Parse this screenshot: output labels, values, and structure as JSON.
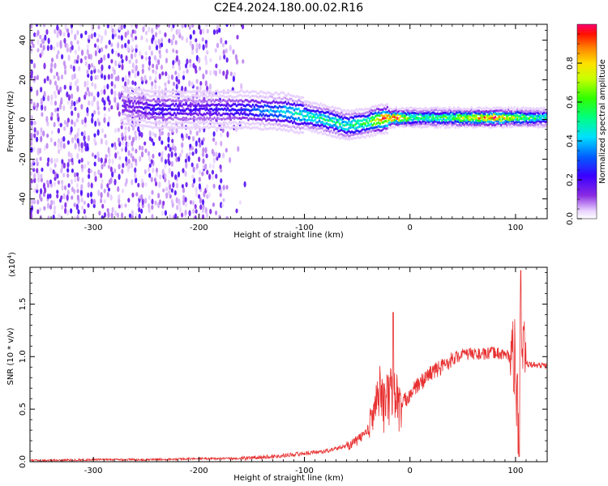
{
  "figure": {
    "title": "C2E4.2024.180.00.02.R16"
  },
  "chart_data": [
    {
      "type": "heatmap",
      "title": "C2E4.2024.180.00.02.R16",
      "xlabel": "Height of straight line (km)",
      "ylabel": "Frequency (Hz)",
      "xlim": [
        -360,
        130
      ],
      "ylim": [
        -50,
        48
      ],
      "x_ticks": [
        -300,
        -200,
        -100,
        0,
        100
      ],
      "x_tick_labels": [
        "-300",
        "-200",
        "-100",
        "0",
        "100"
      ],
      "y_ticks": [
        -40,
        -20,
        0,
        20,
        40
      ],
      "y_tick_labels": [
        "-40",
        "-20",
        "0",
        "20",
        "40"
      ],
      "colorbar": {
        "label": "Normalized spectral amplitude",
        "range": [
          0,
          1
        ],
        "ticks": [
          0.0,
          0.2,
          0.4,
          0.6,
          0.8
        ],
        "tick_labels": [
          "0.0",
          "0.2",
          "0.4",
          "0.6",
          "0.8"
        ]
      },
      "ridge_center_hz": [
        {
          "x": -270,
          "y": 7
        },
        {
          "x": -240,
          "y": 5
        },
        {
          "x": -200,
          "y": 5
        },
        {
          "x": -160,
          "y": 5
        },
        {
          "x": -120,
          "y": 4
        },
        {
          "x": -100,
          "y": 2
        },
        {
          "x": -80,
          "y": 0
        },
        {
          "x": -60,
          "y": -3
        },
        {
          "x": -45,
          "y": -2
        },
        {
          "x": -30,
          "y": 0
        },
        {
          "x": -15,
          "y": 1
        },
        {
          "x": 0,
          "y": 1
        },
        {
          "x": 40,
          "y": 1
        },
        {
          "x": 80,
          "y": 1
        },
        {
          "x": 100,
          "y": 1
        },
        {
          "x": 130,
          "y": 1
        }
      ],
      "ridge_peak_amplitude": [
        {
          "x": -270,
          "y": 0.15
        },
        {
          "x": -240,
          "y": 0.25
        },
        {
          "x": -200,
          "y": 0.2
        },
        {
          "x": -150,
          "y": 0.3
        },
        {
          "x": -120,
          "y": 0.45
        },
        {
          "x": -90,
          "y": 0.55
        },
        {
          "x": -60,
          "y": 0.55
        },
        {
          "x": -40,
          "y": 0.6
        },
        {
          "x": -25,
          "y": 1.0
        },
        {
          "x": -10,
          "y": 0.95
        },
        {
          "x": 0,
          "y": 0.6
        },
        {
          "x": 30,
          "y": 0.6
        },
        {
          "x": 60,
          "y": 0.8
        },
        {
          "x": 80,
          "y": 1.0
        },
        {
          "x": 100,
          "y": 0.7
        },
        {
          "x": 130,
          "y": 0.5
        }
      ],
      "noise_region_x": [
        -360,
        -160
      ]
    },
    {
      "type": "line",
      "xlabel": "Height of straight line (km)",
      "ylabel": "SNR (10 * v/v)",
      "multiplier": "(x10^4)",
      "multiplier_base": "(x10",
      "multiplier_exp": "4",
      "multiplier_close": ")",
      "xlim": [
        -360,
        130
      ],
      "ylim": [
        0,
        1.85
      ],
      "x_ticks": [
        -300,
        -200,
        -100,
        0,
        100
      ],
      "x_tick_labels": [
        "-300",
        "-200",
        "-100",
        "0",
        "100"
      ],
      "y_ticks": [
        0.0,
        0.5,
        1.0,
        1.5
      ],
      "y_tick_labels": [
        "0.0",
        "0.5",
        "1.0",
        "1.5"
      ],
      "color": "#e83030",
      "series": [
        {
          "values_x": [
            -360,
            -300,
            -250,
            -200,
            -160,
            -130,
            -100,
            -80,
            -60,
            -50,
            -40,
            -35,
            -30,
            -25,
            -20,
            -15,
            -10,
            0,
            10,
            20,
            30,
            40,
            50,
            60,
            70,
            80,
            90,
            95,
            100,
            103,
            105,
            107,
            110,
            120,
            130
          ],
          "values_y": [
            0.01,
            0.02,
            0.02,
            0.03,
            0.03,
            0.05,
            0.08,
            0.1,
            0.15,
            0.2,
            0.3,
            0.45,
            0.7,
            0.55,
            0.6,
            0.7,
            0.5,
            0.65,
            0.75,
            0.85,
            0.9,
            0.98,
            1.02,
            1.03,
            1.02,
            1.04,
            1.02,
            1.0,
            0.95,
            0.2,
            1.5,
            0.95,
            0.93,
            0.92,
            0.91
          ]
        }
      ]
    }
  ]
}
